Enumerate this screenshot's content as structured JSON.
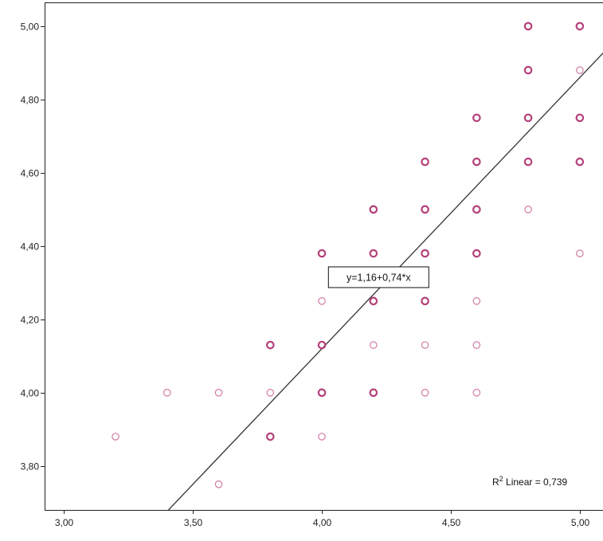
{
  "chart_data": {
    "type": "scatter",
    "title": "",
    "xlabel": "",
    "ylabel": "",
    "xlim": [
      2.925,
      5.09
    ],
    "ylim": [
      3.68,
      5.065
    ],
    "x_ticks": [
      {
        "value": 3.0,
        "label": "3,00"
      },
      {
        "value": 3.5,
        "label": "3,50"
      },
      {
        "value": 4.0,
        "label": "4,00"
      },
      {
        "value": 4.5,
        "label": "4,50"
      },
      {
        "value": 5.0,
        "label": "5,00"
      }
    ],
    "y_ticks": [
      {
        "value": 3.8,
        "label": "3,80"
      },
      {
        "value": 4.0,
        "label": "4,00"
      },
      {
        "value": 4.2,
        "label": "4,20"
      },
      {
        "value": 4.4,
        "label": "4,40"
      },
      {
        "value": 4.6,
        "label": "4,60"
      },
      {
        "value": 4.8,
        "label": "4,80"
      },
      {
        "value": 5.0,
        "label": "5,00"
      }
    ],
    "points": [
      {
        "x": 3.2,
        "y": 3.88,
        "weight": 1
      },
      {
        "x": 3.4,
        "y": 4.0,
        "weight": 1
      },
      {
        "x": 3.6,
        "y": 4.0,
        "weight": 1
      },
      {
        "x": 3.6,
        "y": 3.75,
        "weight": 1
      },
      {
        "x": 3.8,
        "y": 4.13,
        "weight": 2
      },
      {
        "x": 3.8,
        "y": 4.0,
        "weight": 1
      },
      {
        "x": 3.8,
        "y": 3.88,
        "weight": 2
      },
      {
        "x": 4.0,
        "y": 4.38,
        "weight": 2
      },
      {
        "x": 4.0,
        "y": 4.25,
        "weight": 1
      },
      {
        "x": 4.0,
        "y": 4.13,
        "weight": 2
      },
      {
        "x": 4.0,
        "y": 4.0,
        "weight": 2
      },
      {
        "x": 4.0,
        "y": 3.88,
        "weight": 1
      },
      {
        "x": 4.2,
        "y": 4.5,
        "weight": 2
      },
      {
        "x": 4.2,
        "y": 4.38,
        "weight": 2
      },
      {
        "x": 4.2,
        "y": 4.25,
        "weight": 2
      },
      {
        "x": 4.2,
        "y": 4.13,
        "weight": 1
      },
      {
        "x": 4.2,
        "y": 4.0,
        "weight": 2
      },
      {
        "x": 4.4,
        "y": 4.63,
        "weight": 2
      },
      {
        "x": 4.4,
        "y": 4.5,
        "weight": 2
      },
      {
        "x": 4.4,
        "y": 4.38,
        "weight": 2
      },
      {
        "x": 4.4,
        "y": 4.25,
        "weight": 2
      },
      {
        "x": 4.4,
        "y": 4.13,
        "weight": 1
      },
      {
        "x": 4.4,
        "y": 4.0,
        "weight": 1
      },
      {
        "x": 4.6,
        "y": 4.75,
        "weight": 2
      },
      {
        "x": 4.6,
        "y": 4.63,
        "weight": 2
      },
      {
        "x": 4.6,
        "y": 4.5,
        "weight": 2
      },
      {
        "x": 4.6,
        "y": 4.38,
        "weight": 2
      },
      {
        "x": 4.6,
        "y": 4.25,
        "weight": 1
      },
      {
        "x": 4.6,
        "y": 4.13,
        "weight": 1
      },
      {
        "x": 4.6,
        "y": 4.0,
        "weight": 1
      },
      {
        "x": 4.8,
        "y": 5.0,
        "weight": 2
      },
      {
        "x": 4.8,
        "y": 4.88,
        "weight": 2
      },
      {
        "x": 4.8,
        "y": 4.75,
        "weight": 2
      },
      {
        "x": 4.8,
        "y": 4.63,
        "weight": 2
      },
      {
        "x": 4.8,
        "y": 4.5,
        "weight": 1
      },
      {
        "x": 5.0,
        "y": 5.0,
        "weight": 2
      },
      {
        "x": 5.0,
        "y": 4.88,
        "weight": 1
      },
      {
        "x": 5.0,
        "y": 4.75,
        "weight": 2
      },
      {
        "x": 5.0,
        "y": 4.63,
        "weight": 2
      },
      {
        "x": 5.0,
        "y": 4.38,
        "weight": 1
      }
    ],
    "fit_line": {
      "intercept": 1.16,
      "slope": 0.74,
      "equation_label": "y=1,16+0,74*x",
      "label_anchor": {
        "x": 4.22,
        "y": 4.315
      }
    },
    "r2_label": {
      "prefix": "R",
      "superscript": "2",
      "text": " Linear = 0,739"
    },
    "grid": false,
    "colors": {
      "marker": "#b5417a",
      "marker_light": "#d27aa6",
      "line": "#333333",
      "axis": "#222222"
    }
  }
}
